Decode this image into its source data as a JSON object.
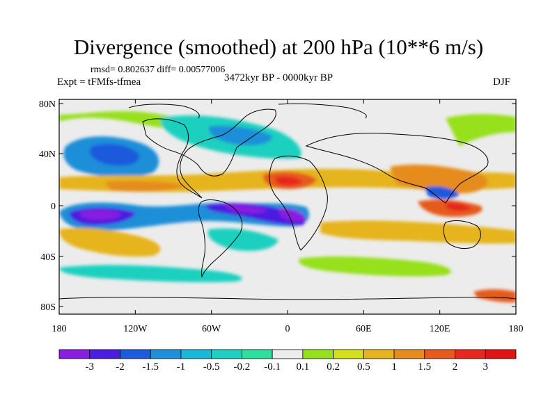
{
  "title": "Divergence (smoothed) at 200 hPa (10**6 m/s)",
  "stats": "rmsd= 0.802637 diff= 0.00577006",
  "experiment": "Expt = tFMfs-tfmea",
  "period": "3472kyr BP - 0000kyr BP",
  "season": "DJF",
  "y_ticks": [
    "80N",
    "40N",
    "0",
    "40S",
    "80S"
  ],
  "x_ticks": [
    "180",
    "120W",
    "60W",
    "0",
    "60E",
    "120E",
    "180"
  ],
  "colorbar": {
    "labels": [
      "-3",
      "-2",
      "-1.5",
      "-1",
      "-0.5",
      "-0.2",
      "-0.1",
      "0.1",
      "0.2",
      "0.5",
      "1",
      "1.5",
      "2",
      "3"
    ],
    "colors": [
      "#8a1ee0",
      "#4a1ee0",
      "#1e5adc",
      "#1e8fd8",
      "#1ab8d8",
      "#1fd0c0",
      "#2ee0a0",
      "#ececec",
      "#96e01e",
      "#d2e01e",
      "#e6b41e",
      "#e68c1e",
      "#e65a1e",
      "#e6281e",
      "#e01414"
    ]
  }
}
